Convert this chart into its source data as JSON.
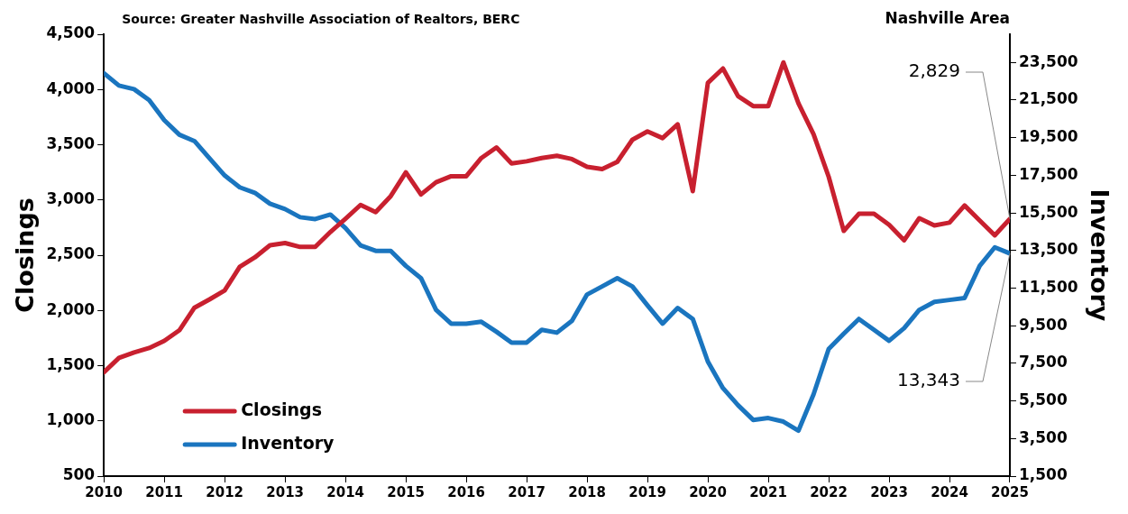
{
  "chart_data": {
    "type": "line",
    "title": "Nashville Area",
    "annotations": [
      "Source: Greater Nashville Association of Realtors, BERC"
    ],
    "ylabel": "Closings",
    "y2label": "Inventory",
    "x": [
      2010,
      2010.25,
      2010.5,
      2010.75,
      2011,
      2011.25,
      2011.5,
      2011.75,
      2012,
      2012.25,
      2012.5,
      2012.75,
      2013,
      2013.25,
      2013.5,
      2013.75,
      2014,
      2014.25,
      2014.5,
      2014.75,
      2015,
      2015.25,
      2015.5,
      2015.75,
      2016,
      2016.25,
      2016.5,
      2016.75,
      2017,
      2017.25,
      2017.5,
      2017.75,
      2018,
      2018.25,
      2018.5,
      2018.75,
      2019,
      2019.25,
      2019.5,
      2019.75,
      2020,
      2020.25,
      2020.5,
      2020.75,
      2021,
      2021.25,
      2021.5,
      2021.75,
      2022,
      2022.25,
      2022.5,
      2022.75,
      2023,
      2023.25,
      2023.5,
      2023.75,
      2024,
      2024.25,
      2024.5,
      2024.75,
      2025
    ],
    "series": [
      {
        "name": "Closings",
        "color": "#c8202f",
        "values": [
          1440,
          1570,
          1620,
          1660,
          1725,
          1820,
          2025,
          2100,
          2180,
          2395,
          2480,
          2590,
          2610,
          2575,
          2575,
          2710,
          2830,
          2955,
          2890,
          3035,
          3250,
          3050,
          3160,
          3215,
          3215,
          3380,
          3475,
          3330,
          3350,
          3380,
          3400,
          3370,
          3300,
          3280,
          3345,
          3545,
          3620,
          3560,
          3685,
          3080,
          4060,
          4190,
          3940,
          3850,
          3850,
          4245,
          3875,
          3595,
          3210,
          2720,
          2875,
          2875,
          2775,
          2635,
          2835,
          2770,
          2795,
          2950,
          2815,
          2680,
          2829
        ],
        "value_labels": [
          null,
          null,
          null,
          null,
          null,
          null,
          null,
          null,
          null,
          null,
          null,
          null,
          null,
          null,
          null,
          null,
          null,
          null,
          null,
          null,
          null,
          null,
          null,
          null,
          null,
          null,
          null,
          null,
          null,
          null,
          null,
          null,
          null,
          null,
          null,
          null,
          null,
          null,
          null,
          null,
          null,
          null,
          null,
          null,
          null,
          null,
          null,
          null,
          null,
          null,
          null,
          null,
          null,
          null,
          null,
          null,
          null,
          null,
          null,
          null,
          "2,829"
        ]
      },
      {
        "name": "Inventory",
        "color": "#1a75bf",
        "axis": "y2",
        "values": [
          22930,
          22270,
          22080,
          21500,
          20430,
          19660,
          19320,
          18400,
          17490,
          16860,
          16570,
          15990,
          15700,
          15270,
          15170,
          15410,
          14690,
          13770,
          13480,
          13480,
          12680,
          12030,
          10340,
          9610,
          9610,
          9710,
          9180,
          8600,
          8600,
          9280,
          9130,
          9760,
          11160,
          11590,
          12030,
          11590,
          10580,
          9610,
          10440,
          9860,
          7590,
          6180,
          5270,
          4490,
          4590,
          4400,
          3920,
          5850,
          8260,
          9080,
          9860,
          9280,
          8700,
          9370,
          10340,
          10770,
          10870,
          10970,
          12680,
          13670,
          13343
        ],
        "value_labels": [
          null,
          null,
          null,
          null,
          null,
          null,
          null,
          null,
          null,
          null,
          null,
          null,
          null,
          null,
          null,
          null,
          null,
          null,
          null,
          null,
          null,
          null,
          null,
          null,
          null,
          null,
          null,
          null,
          null,
          null,
          null,
          null,
          null,
          null,
          null,
          null,
          null,
          null,
          null,
          null,
          null,
          null,
          null,
          null,
          null,
          null,
          null,
          null,
          null,
          null,
          null,
          null,
          null,
          null,
          null,
          null,
          null,
          null,
          null,
          null,
          "13,343"
        ]
      }
    ],
    "xlim": [
      2010,
      2025
    ],
    "xticks": [
      2010,
      2011,
      2012,
      2013,
      2014,
      2015,
      2016,
      2017,
      2018,
      2019,
      2020,
      2021,
      2022,
      2023,
      2024,
      2025
    ],
    "ylim": [
      500,
      4500
    ],
    "yticks": [
      {
        "value": 500,
        "label": "500"
      },
      {
        "value": 1000,
        "label": "1,000"
      },
      {
        "value": 1500,
        "label": "1,500"
      },
      {
        "value": 2000,
        "label": "2,000"
      },
      {
        "value": 2500,
        "label": "2,500"
      },
      {
        "value": 3000,
        "label": "3,000"
      },
      {
        "value": 3500,
        "label": "3,500"
      },
      {
        "value": 4000,
        "label": "4,000"
      },
      {
        "value": 4500,
        "label": "4,500"
      }
    ],
    "y2lim": [
      1500,
      25000
    ],
    "y2ticks": [
      {
        "value": 1500,
        "label": "1,500"
      },
      {
        "value": 3500,
        "label": "3,500"
      },
      {
        "value": 5500,
        "label": "5,500"
      },
      {
        "value": 7500,
        "label": "7,500"
      },
      {
        "value": 9500,
        "label": "9,500"
      },
      {
        "value": 11500,
        "label": "11,500"
      },
      {
        "value": 13500,
        "label": "13,500"
      },
      {
        "value": 15500,
        "label": "15,500"
      },
      {
        "value": 17500,
        "label": "17,500"
      },
      {
        "value": 19500,
        "label": "19,500"
      },
      {
        "value": 21500,
        "label": "21,500"
      },
      {
        "value": 23500,
        "label": "23,500"
      }
    ],
    "grid": false,
    "legend": "bottom left",
    "marker": "none",
    "line_style": "solid"
  }
}
